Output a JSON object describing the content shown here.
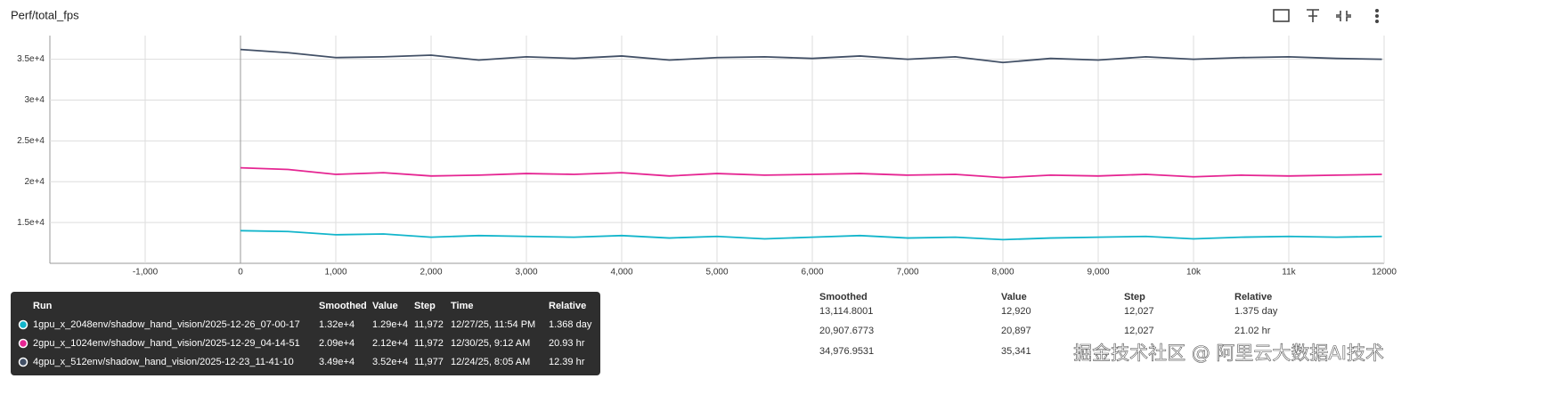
{
  "chart_data": {
    "type": "line",
    "title": "Perf/total_fps",
    "x": [
      0,
      500,
      1000,
      1500,
      2000,
      2500,
      3000,
      3500,
      4000,
      4500,
      5000,
      5500,
      6000,
      6500,
      7000,
      7500,
      8000,
      8500,
      9000,
      9500,
      10000,
      10500,
      11000,
      11500,
      11977
    ],
    "series": [
      {
        "name": "4gpu_x_512env/shadow_hand_vision/2025-12-23_11-41-10",
        "color": "#425066",
        "values": [
          36200,
          35800,
          35200,
          35300,
          35500,
          34900,
          35300,
          35100,
          35400,
          34900,
          35200,
          35300,
          35100,
          35400,
          35000,
          35300,
          34600,
          35100,
          34900,
          35300,
          35000,
          35200,
          35300,
          35100,
          35000
        ]
      },
      {
        "name": "2gpu_x_1024env/shadow_hand_vision/2025-12-29_04-14-51",
        "color": "#e52592",
        "values": [
          21700,
          21500,
          20900,
          21100,
          20700,
          20800,
          21000,
          20900,
          21100,
          20700,
          21000,
          20800,
          20900,
          21000,
          20800,
          20900,
          20500,
          20800,
          20700,
          20900,
          20600,
          20800,
          20700,
          20800,
          20900
        ]
      },
      {
        "name": "1gpu_x_2048env/shadow_hand_vision/2025-12-26_07-00-17",
        "color": "#12b5cb",
        "values": [
          14000,
          13900,
          13500,
          13600,
          13200,
          13400,
          13300,
          13200,
          13400,
          13100,
          13300,
          13000,
          13200,
          13400,
          13100,
          13200,
          12900,
          13100,
          13200,
          13300,
          13000,
          13200,
          13300,
          13200,
          13300
        ]
      }
    ],
    "xlim": [
      -2000,
      12000
    ],
    "ylim": [
      10000,
      37900
    ],
    "xticks": [
      {
        "value": -1000,
        "label": "-1,000"
      },
      0,
      {
        "value": 1000,
        "label": "1,000"
      },
      {
        "value": 2000,
        "label": "2,000"
      },
      {
        "value": 3000,
        "label": "3,000"
      },
      {
        "value": 4000,
        "label": "4,000"
      },
      {
        "value": 5000,
        "label": "5,000"
      },
      {
        "value": 6000,
        "label": "6,000"
      },
      {
        "value": 7000,
        "label": "7,000"
      },
      {
        "value": 8000,
        "label": "8,000"
      },
      {
        "value": 9000,
        "label": "9,000"
      },
      {
        "value": 10000,
        "label": "10k"
      },
      {
        "value": 11000,
        "label": "11k"
      },
      {
        "value": 12000,
        "label": "12000"
      }
    ],
    "yticks": [
      {
        "value": 15000,
        "label": "1.5e+4"
      },
      {
        "value": 20000,
        "label": "2e+4"
      },
      {
        "value": 25000,
        "label": "2.5e+4"
      },
      {
        "value": 30000,
        "label": "3e+4"
      },
      {
        "value": 35000,
        "label": "3.5e+4"
      }
    ],
    "grid": true
  },
  "tooltip": {
    "headers": [
      "Run",
      "Smoothed",
      "Value",
      "Step",
      "Time",
      "Relative"
    ],
    "rows": [
      [
        "1gpu_x_2048env/shadow_hand_vision/2025-12-26_07-00-17",
        "1.32e+4",
        "1.29e+4",
        "11,972",
        "12/27/25, 11:54 PM",
        "1.368 day"
      ],
      [
        "2gpu_x_1024env/shadow_hand_vision/2025-12-29_04-14-51",
        "2.09e+4",
        "2.12e+4",
        "11,972",
        "12/30/25, 9:12 AM",
        "20.93 hr"
      ],
      [
        "4gpu_x_512env/shadow_hand_vision/2025-12-23_11-41-10",
        "3.49e+4",
        "3.52e+4",
        "11,977",
        "12/24/25, 8:05 AM",
        "12.39 hr"
      ]
    ]
  },
  "table": {
    "headers": [
      "Smoothed",
      "Value",
      "Step",
      "Relative"
    ],
    "rows": [
      [
        "13,114.8001",
        "12,920",
        "12,027",
        "1.375 day"
      ],
      [
        "20,907.6773",
        "20,897",
        "12,027",
        "21.02 hr"
      ],
      [
        "34,976.9531",
        "35,341",
        "",
        ""
      ]
    ]
  },
  "watermark": "掘金技术社区 @ 阿里云大数据AI技术"
}
